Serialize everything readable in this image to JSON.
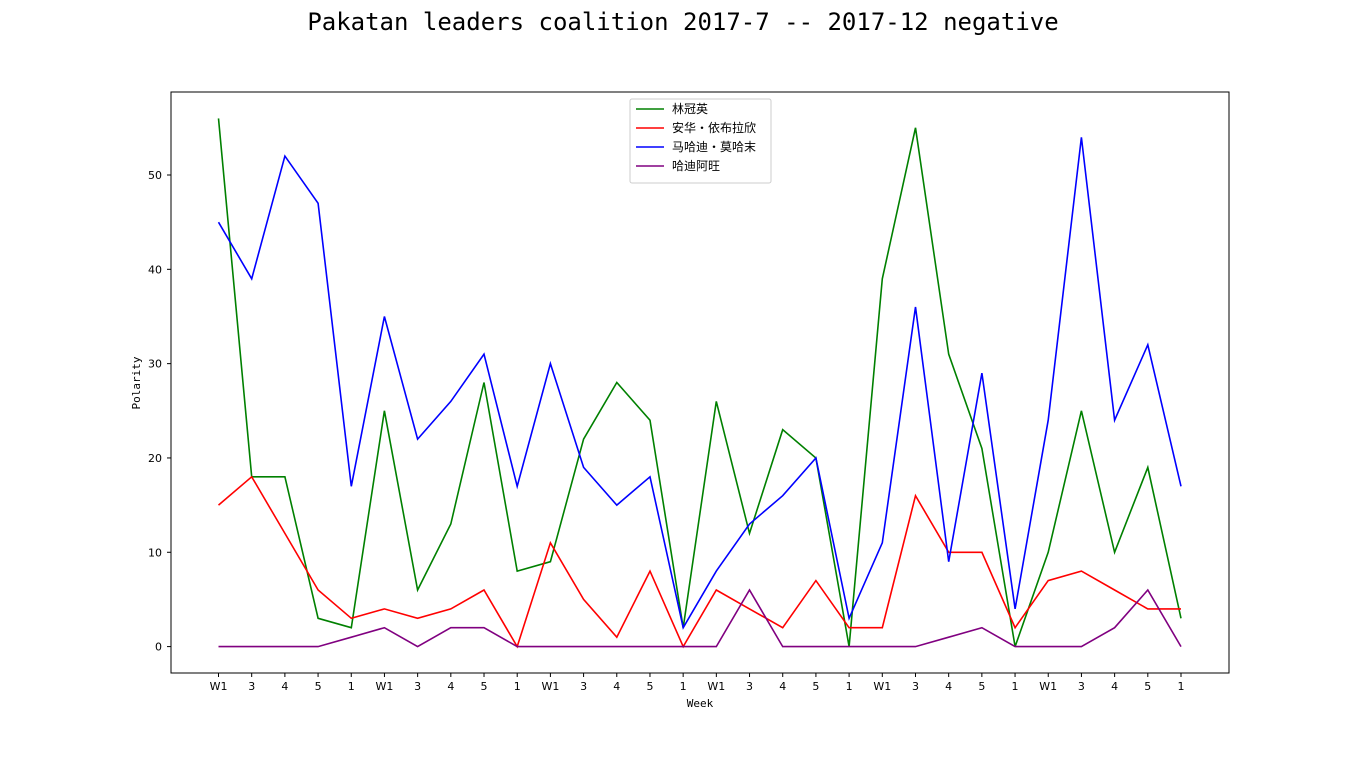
{
  "chart_data": {
    "type": "line",
    "title": "Pakatan leaders coalition 2017-7 -- 2017-12 negative",
    "xlabel": "Week",
    "ylabel": "Polarity",
    "categories": [
      "W1",
      "3",
      "4",
      "5",
      "1",
      "W1",
      "3",
      "4",
      "5",
      "1",
      "W1",
      "3",
      "4",
      "5",
      "1",
      "W1",
      "3",
      "4",
      "5",
      "1",
      "W1",
      "3",
      "4",
      "5",
      "1",
      "W1",
      "3",
      "4",
      "5",
      "1"
    ],
    "ylim": [
      -2.8,
      58.8
    ],
    "yticks": [
      0,
      10,
      20,
      30,
      40,
      50
    ],
    "grid": false,
    "legend_position": "top-center",
    "series": [
      {
        "name": "林冠英",
        "color": "#008000",
        "values": [
          56,
          18,
          18,
          3,
          2,
          25,
          6,
          13,
          28,
          8,
          9,
          22,
          28,
          24,
          2,
          26,
          12,
          23,
          20,
          0,
          39,
          55,
          31,
          21,
          0,
          10,
          25,
          10,
          19,
          3
        ]
      },
      {
        "name": "安华・依布拉欣",
        "color": "#ff0000",
        "values": [
          15,
          18,
          12,
          6,
          3,
          4,
          3,
          4,
          6,
          0,
          11,
          5,
          1,
          8,
          0,
          6,
          4,
          2,
          7,
          2,
          2,
          16,
          10,
          10,
          2,
          7,
          8,
          6,
          4,
          4
        ]
      },
      {
        "name": "马哈迪・莫哈末",
        "color": "#0000ff",
        "values": [
          45,
          39,
          52,
          47,
          17,
          35,
          22,
          26,
          31,
          17,
          30,
          19,
          15,
          18,
          2,
          8,
          13,
          16,
          20,
          3,
          11,
          36,
          9,
          29,
          4,
          24,
          54,
          24,
          32,
          17
        ]
      },
      {
        "name": "哈迪阿旺",
        "color": "#800080",
        "values": [
          0,
          0,
          0,
          0,
          1,
          2,
          0,
          2,
          2,
          0,
          0,
          0,
          0,
          0,
          0,
          0,
          6,
          0,
          0,
          0,
          0,
          0,
          1,
          2,
          0,
          0,
          0,
          2,
          6,
          0
        ]
      }
    ]
  }
}
